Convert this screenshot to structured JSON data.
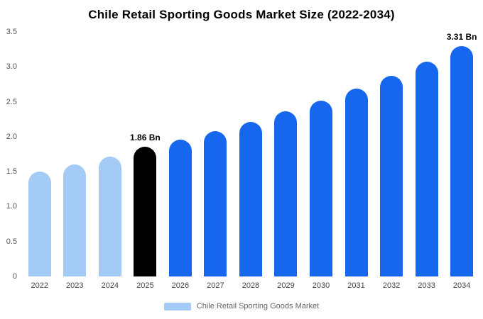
{
  "chart_data": {
    "type": "bar",
    "title": "Chile Retail Sporting Goods Market Size (2022-2034)",
    "categories": [
      "2022",
      "2023",
      "2024",
      "2025",
      "2026",
      "2027",
      "2028",
      "2029",
      "2030",
      "2031",
      "2032",
      "2033",
      "2034"
    ],
    "values": [
      1.5,
      1.6,
      1.71,
      1.86,
      1.96,
      2.08,
      2.21,
      2.36,
      2.52,
      2.69,
      2.87,
      3.07,
      3.31
    ],
    "unit": "Bn",
    "xlabel": "",
    "ylabel": "",
    "ylim": [
      0,
      3.5
    ],
    "y_ticks": [
      "3.5",
      "3.0",
      "2.5",
      "2.0",
      "1.5",
      "1.0",
      "0.5",
      "0"
    ],
    "grid": false,
    "annotations": {
      "2025": "1.86 Bn",
      "2034": "3.31 Bn"
    },
    "bar_colors": [
      "#A4CAF6",
      "#A4CAF6",
      "#A4CAF6",
      "#000000",
      "#1766EE",
      "#1766EE",
      "#1766EE",
      "#1766EE",
      "#1766EE",
      "#1766EE",
      "#1766EE",
      "#1766EE",
      "#1766EE"
    ],
    "colors": {
      "historical": "#A4CAF6",
      "highlight_year": "#000000",
      "forecast": "#1766EE"
    },
    "legend_position": "bottom",
    "legend": [
      {
        "label": "Chile Retail Sporting Goods Market",
        "color": "#A4CAF6"
      }
    ]
  }
}
